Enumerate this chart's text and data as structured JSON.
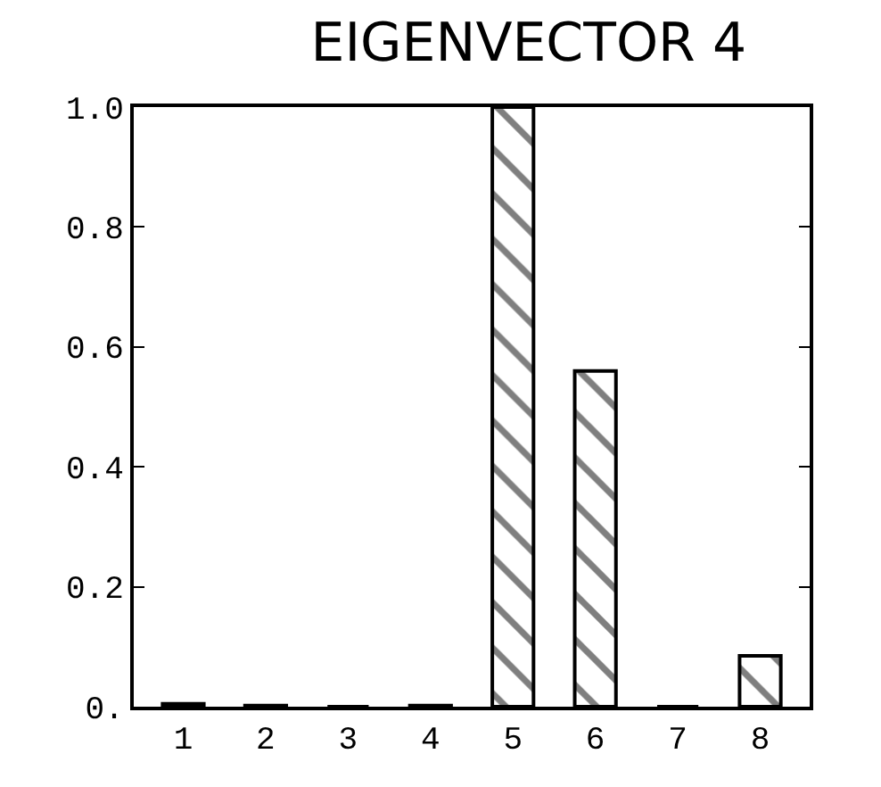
{
  "chart_data": {
    "type": "bar",
    "title": "EIGENVECTOR 4",
    "categories": [
      "1",
      "2",
      "3",
      "4",
      "5",
      "6",
      "7",
      "8"
    ],
    "values": [
      0.005,
      0.002,
      0,
      0.002,
      1.0,
      0.56,
      0,
      0.085
    ],
    "color": "#000000",
    "ylim": [
      0,
      1.0
    ],
    "yticks": [
      {
        "value": 0,
        "label": "0."
      },
      {
        "value": 0.2,
        "label": "0.2"
      },
      {
        "value": 0.4,
        "label": "0.4"
      },
      {
        "value": 0.6,
        "label": "0.6"
      },
      {
        "value": 0.8,
        "label": "0.8"
      },
      {
        "value": 1.0,
        "label": "1.0"
      }
    ]
  }
}
